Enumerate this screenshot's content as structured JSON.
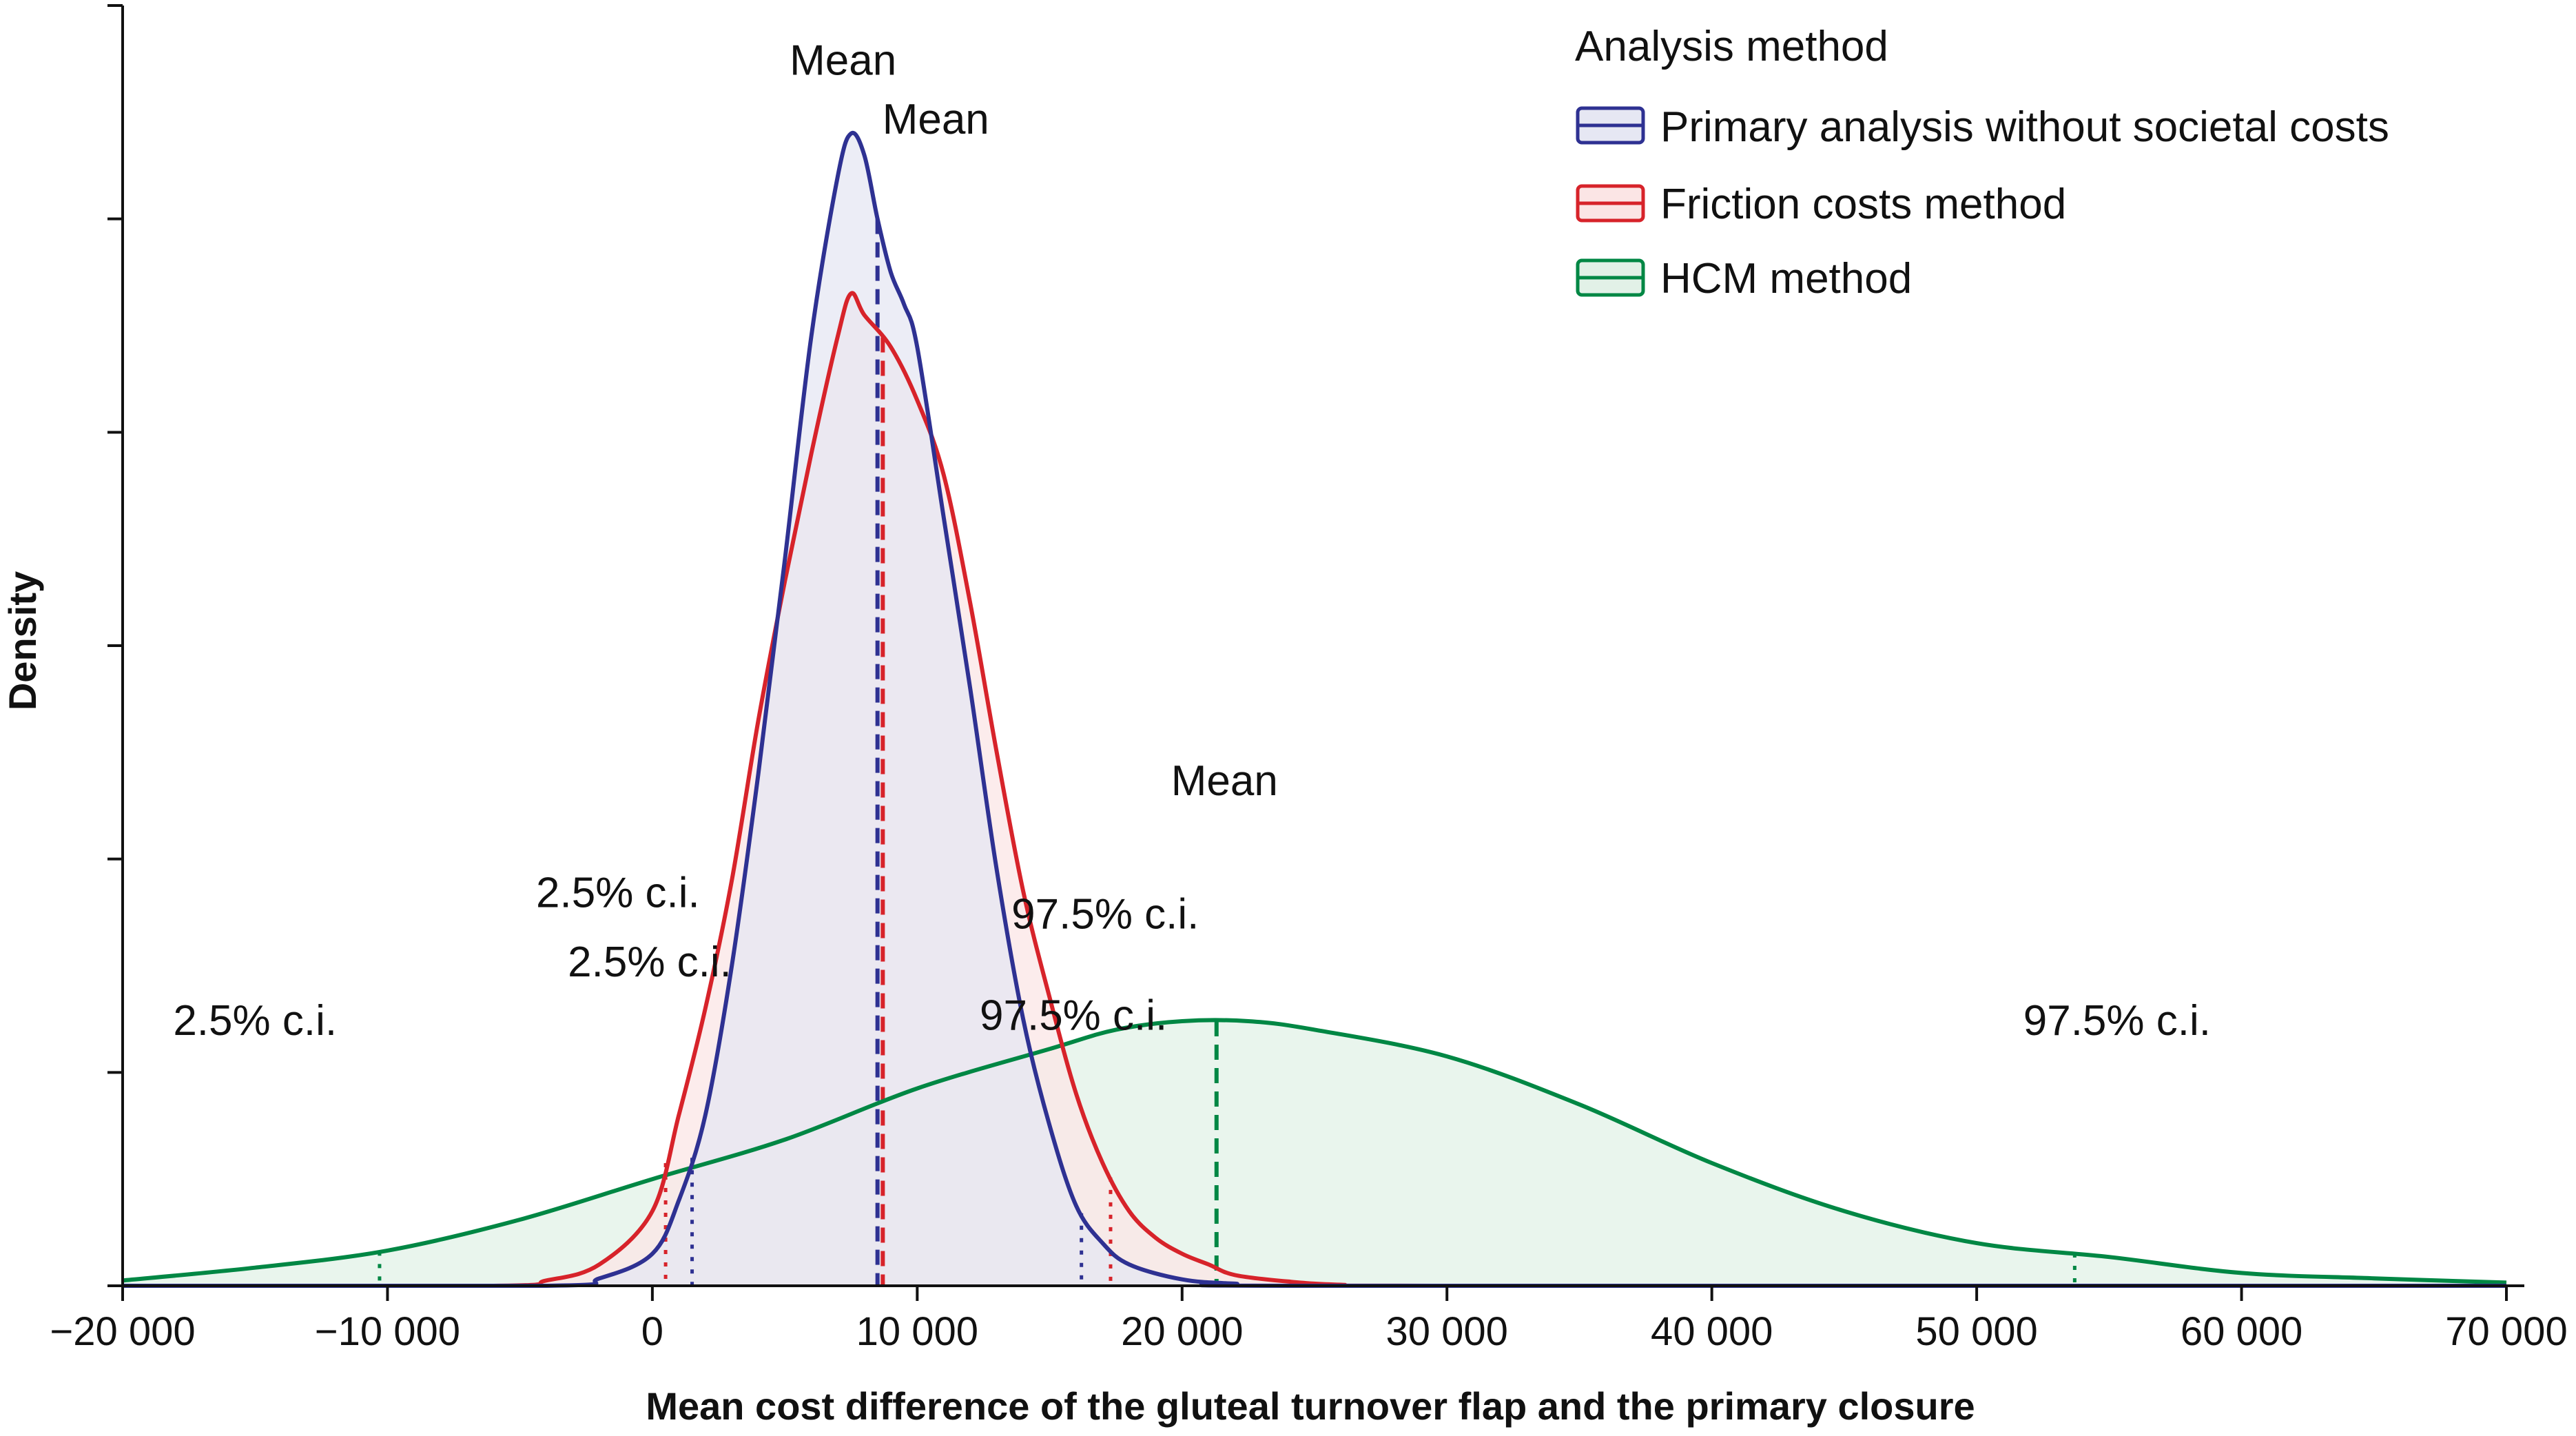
{
  "chart_data": {
    "type": "area",
    "xlabel": "Mean cost difference of the gluteal turnover flap and the primary closure",
    "ylabel": "Density",
    "xlim": [
      -20000,
      70000
    ],
    "ylim": [
      0,
      12
    ],
    "x_ticks": [
      -20000,
      -10000,
      0,
      10000,
      20000,
      30000,
      40000,
      50000,
      60000,
      70000
    ],
    "x_tick_labels": [
      "−20 000",
      "−10 000",
      "0",
      "10 000",
      "20 000",
      "30 000",
      "40 000",
      "50 000",
      "60 000",
      "70 000"
    ],
    "y_ticks": [
      0,
      2,
      4,
      6,
      8,
      10,
      12
    ],
    "legend": {
      "title": "Analysis method",
      "position": "top-right"
    },
    "series": [
      {
        "name": "Primary analysis without societal costs",
        "color": "#2e3192",
        "fill": "#e6e7f3",
        "mean": 8500,
        "ci_low": 1500,
        "ci_high": 16200,
        "points": [
          [
            -20000,
            0
          ],
          [
            -4000,
            0
          ],
          [
            -2000,
            0.07
          ],
          [
            0,
            0.3
          ],
          [
            1000,
            0.8
          ],
          [
            2000,
            1.6
          ],
          [
            3000,
            3.0
          ],
          [
            4000,
            4.8
          ],
          [
            5000,
            6.8
          ],
          [
            6000,
            8.9
          ],
          [
            7000,
            10.4
          ],
          [
            7500,
            10.8
          ],
          [
            8000,
            10.6
          ],
          [
            8500,
            10.0
          ],
          [
            9000,
            9.5
          ],
          [
            9500,
            9.2
          ],
          [
            10000,
            8.8
          ],
          [
            11000,
            7.2
          ],
          [
            12000,
            5.6
          ],
          [
            13000,
            3.9
          ],
          [
            14000,
            2.5
          ],
          [
            15000,
            1.5
          ],
          [
            16000,
            0.75
          ],
          [
            17000,
            0.4
          ],
          [
            18000,
            0.2
          ],
          [
            20000,
            0.06
          ],
          [
            22000,
            0.02
          ],
          [
            25000,
            0
          ],
          [
            70000,
            0
          ]
        ]
      },
      {
        "name": "Friction costs method",
        "color": "#d7232a",
        "fill": "#fbe5e5",
        "mean": 8700,
        "ci_low": 500,
        "ci_high": 17300,
        "points": [
          [
            -20000,
            0
          ],
          [
            -6000,
            0
          ],
          [
            -4000,
            0.05
          ],
          [
            -2000,
            0.2
          ],
          [
            0,
            0.7
          ],
          [
            1000,
            1.6
          ],
          [
            2000,
            2.6
          ],
          [
            3000,
            3.8
          ],
          [
            4000,
            5.3
          ],
          [
            5000,
            6.6
          ],
          [
            6000,
            7.8
          ],
          [
            7000,
            8.9
          ],
          [
            7500,
            9.3
          ],
          [
            8000,
            9.1
          ],
          [
            9000,
            8.8
          ],
          [
            10000,
            8.3
          ],
          [
            11000,
            7.6
          ],
          [
            12000,
            6.4
          ],
          [
            13000,
            5.0
          ],
          [
            14000,
            3.7
          ],
          [
            15000,
            2.7
          ],
          [
            16000,
            1.8
          ],
          [
            17000,
            1.15
          ],
          [
            18000,
            0.7
          ],
          [
            19000,
            0.45
          ],
          [
            20000,
            0.3
          ],
          [
            21000,
            0.2
          ],
          [
            22000,
            0.1
          ],
          [
            24000,
            0.04
          ],
          [
            26000,
            0.01
          ],
          [
            30000,
            0
          ],
          [
            70000,
            0
          ]
        ]
      },
      {
        "name": "HCM method",
        "color": "#008744",
        "fill": "#e2f1e7",
        "mean": 21300,
        "ci_low": -10300,
        "ci_high": 53700,
        "points": [
          [
            -20000,
            0.05
          ],
          [
            -15000,
            0.17
          ],
          [
            -10000,
            0.33
          ],
          [
            -5000,
            0.62
          ],
          [
            0,
            1.0
          ],
          [
            5000,
            1.37
          ],
          [
            10000,
            1.85
          ],
          [
            15000,
            2.22
          ],
          [
            17500,
            2.4
          ],
          [
            20000,
            2.48
          ],
          [
            22500,
            2.48
          ],
          [
            25000,
            2.4
          ],
          [
            30000,
            2.15
          ],
          [
            35000,
            1.7
          ],
          [
            40000,
            1.15
          ],
          [
            45000,
            0.7
          ],
          [
            50000,
            0.4
          ],
          [
            55000,
            0.27
          ],
          [
            60000,
            0.12
          ],
          [
            65000,
            0.07
          ],
          [
            70000,
            0.03
          ]
        ]
      }
    ],
    "annotations": [
      {
        "text": "Mean",
        "x": 7200,
        "y": 11.35
      },
      {
        "text": "Mean",
        "x": 10700,
        "y": 10.8
      },
      {
        "text": "Mean",
        "x": 21600,
        "y": 4.6
      },
      {
        "text": "2.5% c.i.",
        "x": -1300,
        "y": 3.55
      },
      {
        "text": "2.5% c.i.",
        "x": -100,
        "y": 2.9
      },
      {
        "text": "2.5% c.i.",
        "x": -15000,
        "y": 2.35
      },
      {
        "text": "97.5% c.i.",
        "x": 17100,
        "y": 3.35
      },
      {
        "text": "97.5% c.i.",
        "x": 15900,
        "y": 2.4
      },
      {
        "text": "97.5% c.i.",
        "x": 55300,
        "y": 2.35
      }
    ]
  }
}
